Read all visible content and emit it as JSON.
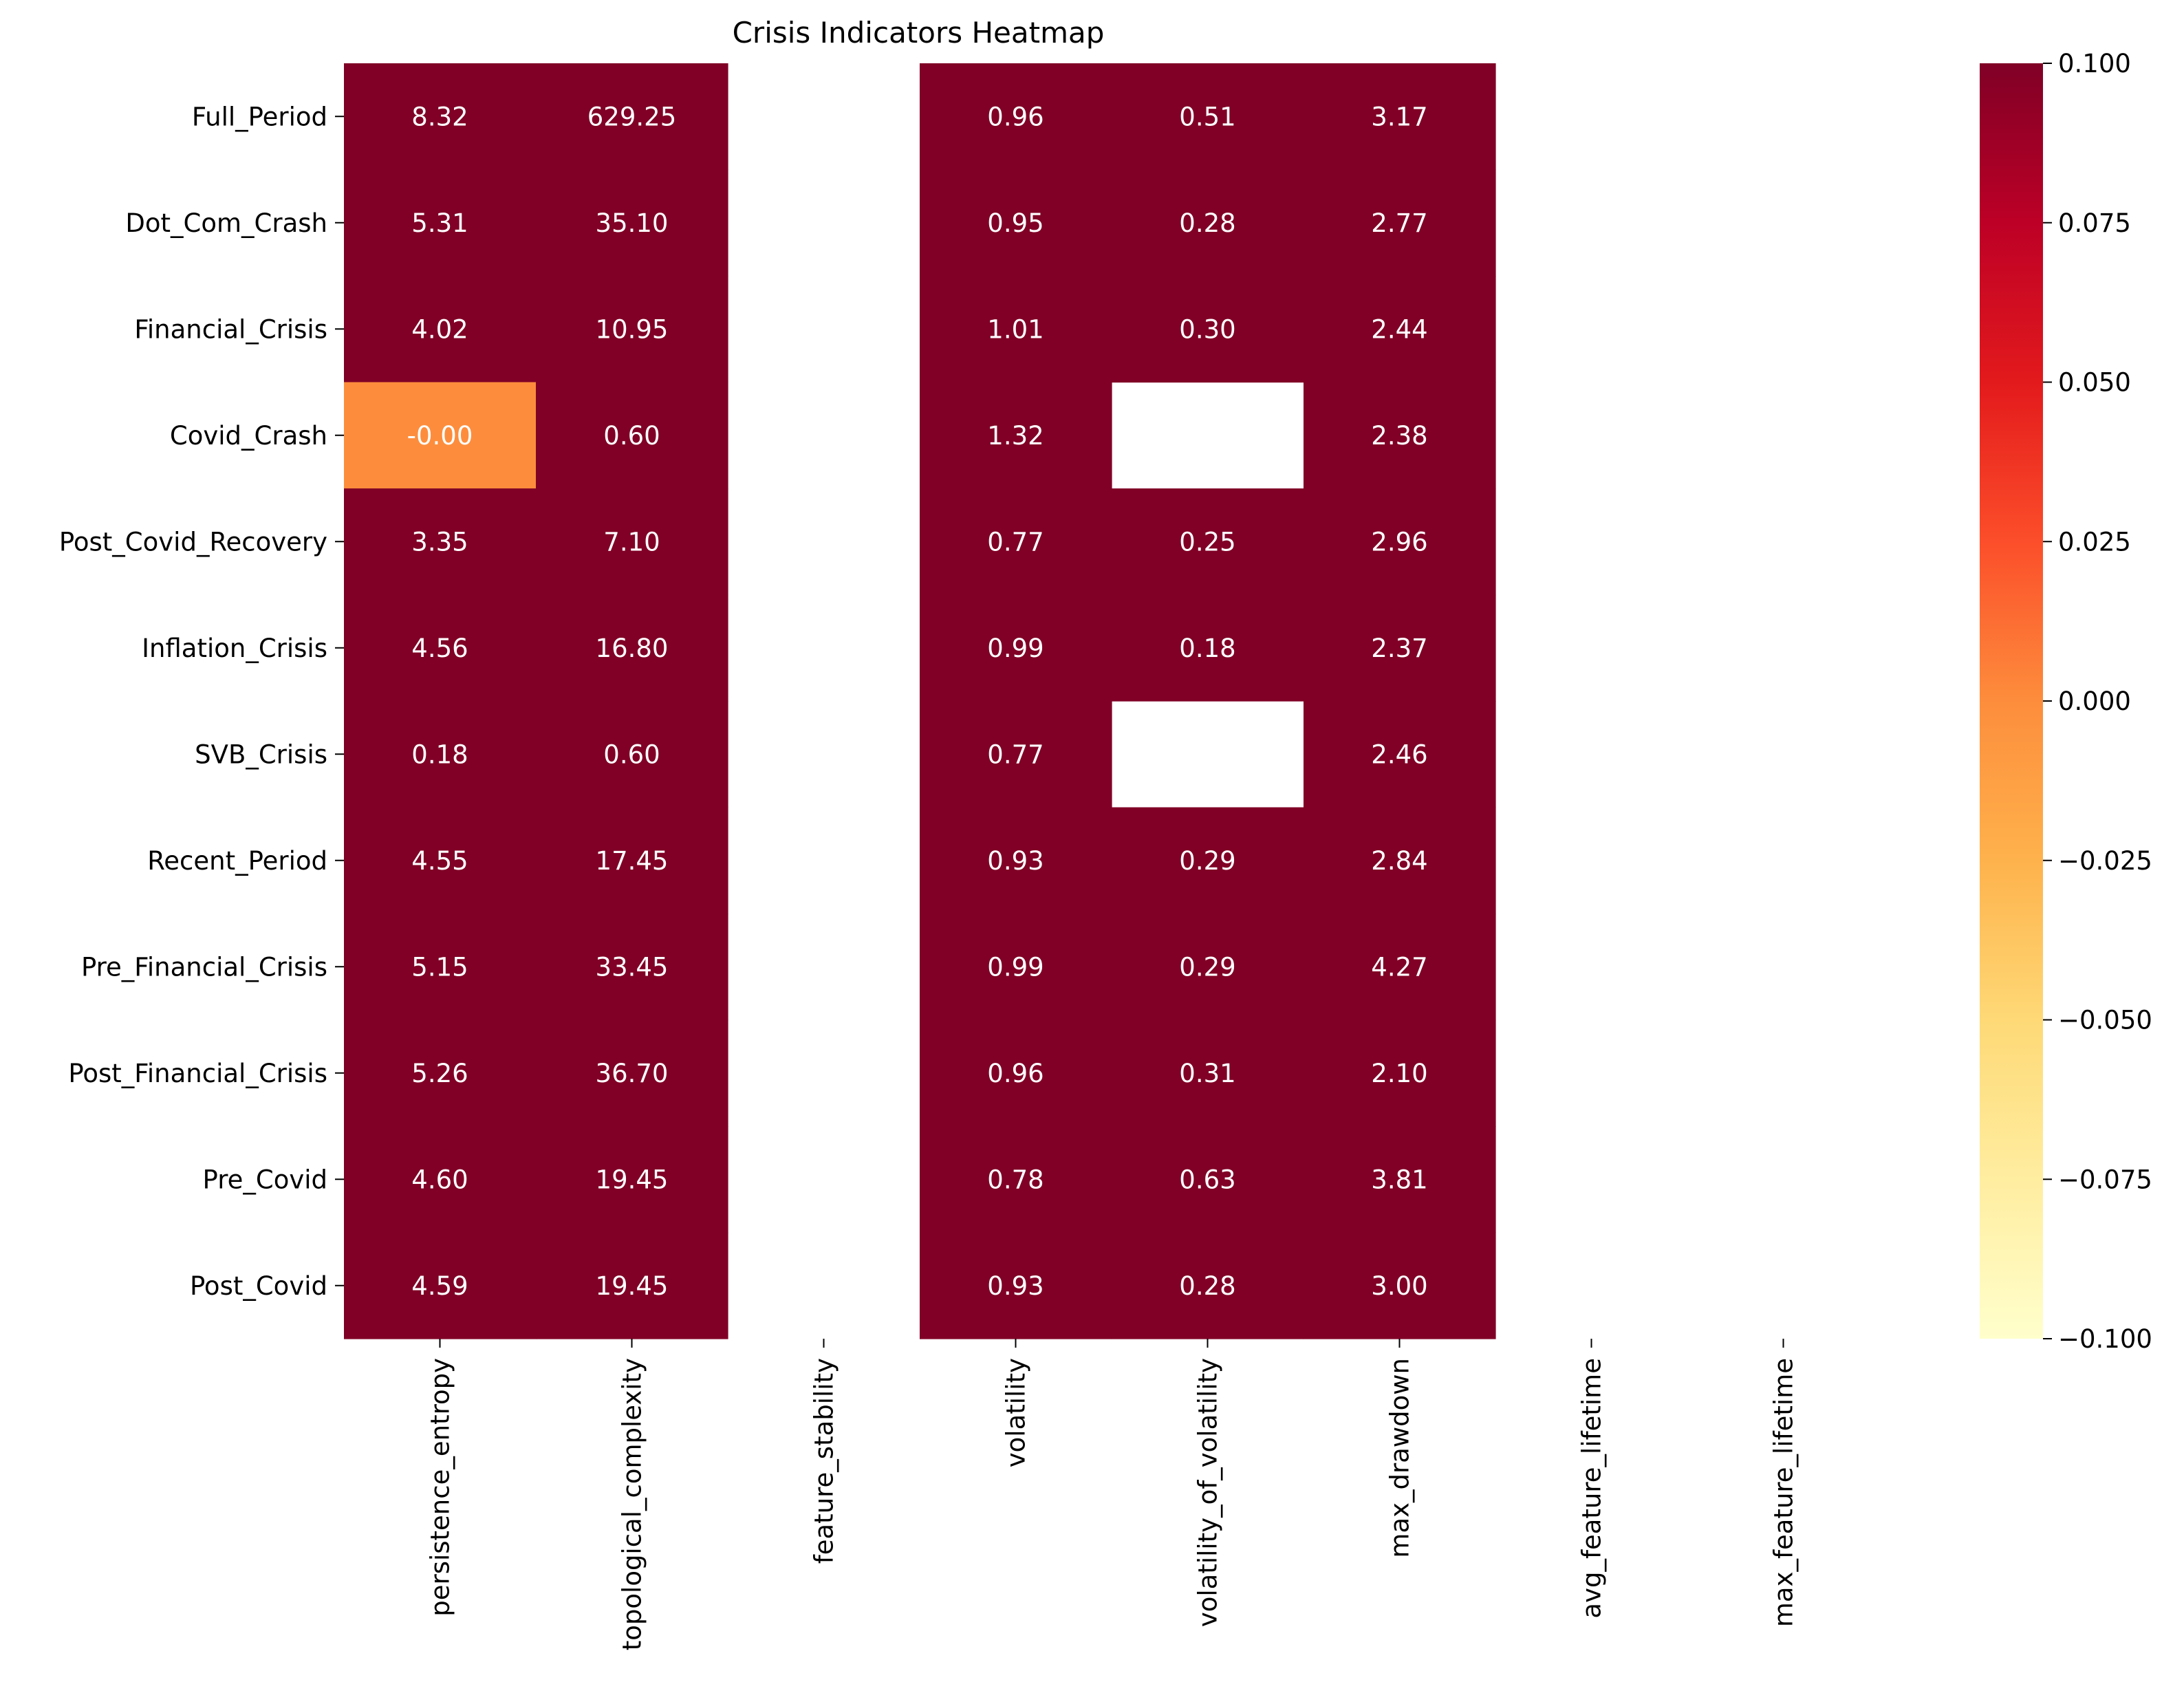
{
  "chart_data": {
    "type": "heatmap",
    "title": "Crisis Indicators Heatmap",
    "rows": [
      "Full_Period",
      "Dot_Com_Crash",
      "Financial_Crisis",
      "Covid_Crash",
      "Post_Covid_Recovery",
      "Inflation_Crisis",
      "SVB_Crisis",
      "Recent_Period",
      "Pre_Financial_Crisis",
      "Post_Financial_Crisis",
      "Pre_Covid",
      "Post_Covid"
    ],
    "columns": [
      "persistence_entropy",
      "topological_complexity",
      "feature_stability",
      "volatility",
      "volatility_of_volatility",
      "max_drawdown",
      "avg_feature_lifetime",
      "max_feature_lifetime"
    ],
    "cell_labels": [
      [
        "8.32",
        "629.25",
        null,
        "0.96",
        "0.51",
        "3.17",
        null,
        null
      ],
      [
        "5.31",
        "35.10",
        null,
        "0.95",
        "0.28",
        "2.77",
        null,
        null
      ],
      [
        "4.02",
        "10.95",
        null,
        "1.01",
        "0.30",
        "2.44",
        null,
        null
      ],
      [
        "-0.00",
        "0.60",
        null,
        "1.32",
        null,
        "2.38",
        null,
        null
      ],
      [
        "3.35",
        "7.10",
        null,
        "0.77",
        "0.25",
        "2.96",
        null,
        null
      ],
      [
        "4.56",
        "16.80",
        null,
        "0.99",
        "0.18",
        "2.37",
        null,
        null
      ],
      [
        "0.18",
        "0.60",
        null,
        "0.77",
        null,
        "2.46",
        null,
        null
      ],
      [
        "4.55",
        "17.45",
        null,
        "0.93",
        "0.29",
        "2.84",
        null,
        null
      ],
      [
        "5.15",
        "33.45",
        null,
        "0.99",
        "0.29",
        "4.27",
        null,
        null
      ],
      [
        "5.26",
        "36.70",
        null,
        "0.96",
        "0.31",
        "2.10",
        null,
        null
      ],
      [
        "4.60",
        "19.45",
        null,
        "0.78",
        "0.63",
        "3.81",
        null,
        null
      ],
      [
        "4.59",
        "19.45",
        null,
        "0.93",
        "0.28",
        "3.00",
        null,
        null
      ]
    ],
    "values": [
      [
        8.32,
        629.25,
        null,
        0.96,
        0.51,
        3.17,
        null,
        null
      ],
      [
        5.31,
        35.1,
        null,
        0.95,
        0.28,
        2.77,
        null,
        null
      ],
      [
        4.02,
        10.95,
        null,
        1.01,
        0.3,
        2.44,
        null,
        null
      ],
      [
        -0.0001,
        0.6,
        null,
        1.32,
        null,
        2.38,
        null,
        null
      ],
      [
        3.35,
        7.1,
        null,
        0.77,
        0.25,
        2.96,
        null,
        null
      ],
      [
        4.56,
        16.8,
        null,
        0.99,
        0.18,
        2.37,
        null,
        null
      ],
      [
        0.18,
        0.6,
        null,
        0.77,
        null,
        2.46,
        null,
        null
      ],
      [
        4.55,
        17.45,
        null,
        0.93,
        0.29,
        2.84,
        null,
        null
      ],
      [
        5.15,
        33.45,
        null,
        0.99,
        0.29,
        4.27,
        null,
        null
      ],
      [
        5.26,
        36.7,
        null,
        0.96,
        0.31,
        2.1,
        null,
        null
      ],
      [
        4.6,
        19.45,
        null,
        0.78,
        0.63,
        3.81,
        null,
        null
      ],
      [
        4.59,
        19.45,
        null,
        0.93,
        0.28,
        3.0,
        null,
        null
      ]
    ],
    "colormap": "YlOrRd",
    "colorbar": {
      "vmin": -0.1,
      "vmax": 0.1,
      "ticks": [
        0.1,
        0.075,
        0.05,
        0.025,
        0.0,
        -0.025,
        -0.05,
        -0.075,
        -0.1
      ],
      "tick_labels": [
        "0.100",
        "0.075",
        "0.050",
        "0.025",
        "0.000",
        "−0.025",
        "−0.050",
        "−0.075",
        "−0.100"
      ],
      "colors": [
        "#ffffcc",
        "#ffeda0",
        "#fed976",
        "#feb24c",
        "#fd8d3c",
        "#fc4e2a",
        "#e31a1c",
        "#bd0026",
        "#800026"
      ]
    },
    "missing_color": "#ffffff",
    "grid": false
  }
}
